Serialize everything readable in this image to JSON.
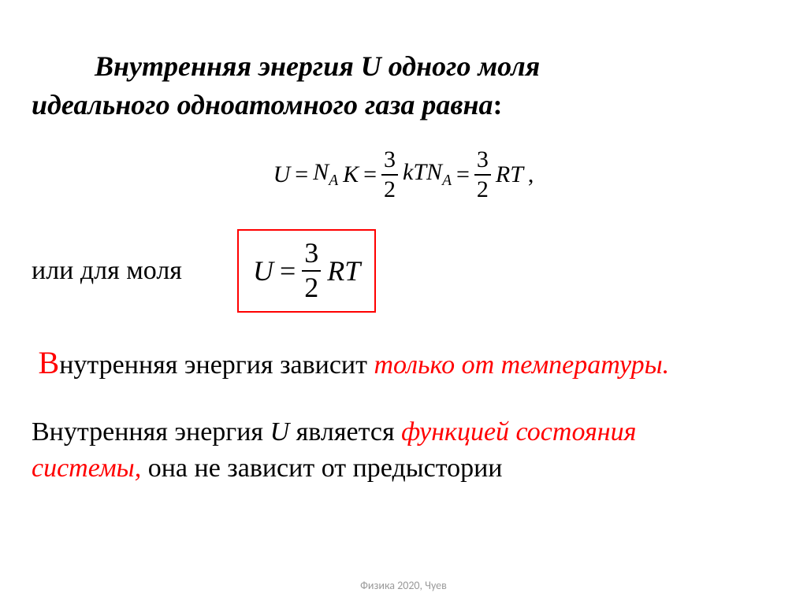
{
  "colors": {
    "background": "#ffffff",
    "text": "#000000",
    "accent": "#ff0000",
    "box_border": "#ff0000",
    "footer": "#9a9a9a"
  },
  "typography": {
    "family": "Times New Roman",
    "title_size_pt": 36,
    "body_size_pt": 34,
    "eq_size_pt": 30,
    "boxed_eq_size_pt": 36,
    "footer_size_pt": 14,
    "title_bold": true,
    "title_italic": true
  },
  "title": {
    "line1": "Внутренняя энергия U одного моля",
    "line2": "идеального одноатомного газа равна",
    "trailing": ":"
  },
  "eq1": {
    "type": "equation",
    "lhs": "U",
    "eq": "=",
    "term1_N": "N",
    "term1_Nsub": "A",
    "term1_K": "K",
    "frac_num": "3",
    "frac_den": "2",
    "kT": "kT",
    "N2": "N",
    "N2sub": "A",
    "R": "R",
    "T": "T",
    "comma": ","
  },
  "moli_label": "или для моля",
  "boxed": {
    "type": "equation",
    "U": "U",
    "eq": "=",
    "num": "3",
    "den": "2",
    "R": "R",
    "T": "T"
  },
  "line3": {
    "cap": "В",
    "rest": "нутренняя энергия зависит ",
    "tail_italic": "только от температуры",
    "dot": "."
  },
  "line4": {
    "pre": "  Внутренняя энергия ",
    "U": "U",
    "mid": " является ",
    "red1": "функцией состояния",
    "red2": "системы,",
    "post": " она не зависит от предыстории"
  },
  "footer": "Физика 2020, Чуев"
}
